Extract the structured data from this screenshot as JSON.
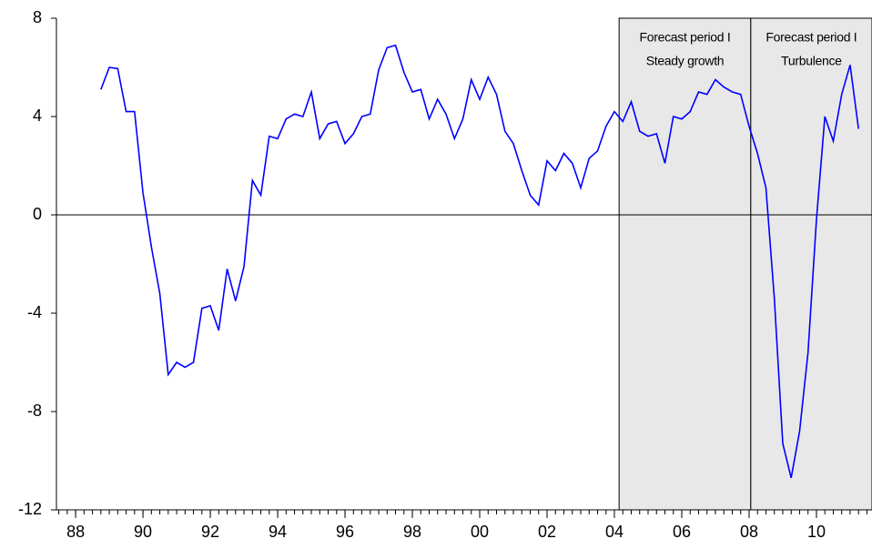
{
  "chart_data": {
    "type": "line",
    "color": "#0000ff",
    "x": [
      1988.75,
      1989,
      1989.25,
      1989.5,
      1989.75,
      1990,
      1990.25,
      1990.5,
      1990.75,
      1991,
      1991.25,
      1991.5,
      1991.75,
      1992,
      1992.25,
      1992.5,
      1992.75,
      1993,
      1993.25,
      1993.5,
      1993.75,
      1994,
      1994.25,
      1994.5,
      1994.75,
      1995,
      1995.25,
      1995.5,
      1995.75,
      1996,
      1996.25,
      1996.5,
      1996.75,
      1997,
      1997.25,
      1997.5,
      1997.75,
      1998,
      1998.25,
      1998.5,
      1998.75,
      1999,
      1999.25,
      1999.5,
      1999.75,
      2000,
      2000.25,
      2000.5,
      2000.75,
      2001,
      2001.25,
      2001.5,
      2001.75,
      2002,
      2002.25,
      2002.5,
      2002.75,
      2003,
      2003.25,
      2003.5,
      2003.75,
      2004,
      2004.25,
      2004.5,
      2004.75,
      2005,
      2005.25,
      2005.5,
      2005.75,
      2006,
      2006.25,
      2006.5,
      2006.75,
      2007,
      2007.25,
      2007.5,
      2007.75,
      2008,
      2008.25,
      2008.5,
      2008.75,
      2009,
      2009.25,
      2009.5,
      2009.75,
      2010,
      2010.25,
      2010.5,
      2010.75,
      2011,
      2011.25
    ],
    "values": [
      5.1,
      6.0,
      5.95,
      4.2,
      4.2,
      0.9,
      -1.3,
      -3.2,
      -6.5,
      -6.0,
      -6.2,
      -6.0,
      -3.8,
      -3.7,
      -4.7,
      -2.2,
      -3.5,
      -2.1,
      1.4,
      0.8,
      3.2,
      3.1,
      3.9,
      4.1,
      4.0,
      5.0,
      3.1,
      3.7,
      3.8,
      2.9,
      3.3,
      4.0,
      4.1,
      5.9,
      6.8,
      6.9,
      5.8,
      5.0,
      5.1,
      3.9,
      4.7,
      4.1,
      3.1,
      3.9,
      5.5,
      4.7,
      5.6,
      4.9,
      3.4,
      2.9,
      1.8,
      0.8,
      0.4,
      2.2,
      1.8,
      2.5,
      2.1,
      1.1,
      2.3,
      2.6,
      3.6,
      4.2,
      3.8,
      4.6,
      3.4,
      3.2,
      3.3,
      2.1,
      4.0,
      3.9,
      4.2,
      5.0,
      4.9,
      5.5,
      5.2,
      5.0,
      4.9,
      3.6,
      2.5,
      1.1,
      -3.4,
      -9.3,
      -10.7,
      -8.8,
      -5.6,
      -0.2,
      4.0,
      3.0,
      4.9,
      6.1,
      3.5
    ],
    "xlim": [
      1987.43,
      2011.65
    ],
    "xticks": [
      {
        "value": 1988,
        "label": "88"
      },
      {
        "value": 1990,
        "label": "90"
      },
      {
        "value": 1992,
        "label": "92"
      },
      {
        "value": 1994,
        "label": "94"
      },
      {
        "value": 1996,
        "label": "96"
      },
      {
        "value": 1998,
        "label": "98"
      },
      {
        "value": 2000,
        "label": "00"
      },
      {
        "value": 2002,
        "label": "02"
      },
      {
        "value": 2004,
        "label": "04"
      },
      {
        "value": 2006,
        "label": "06"
      },
      {
        "value": 2008,
        "label": "08"
      },
      {
        "value": 2010,
        "label": "10"
      }
    ],
    "xminor": 0.25,
    "ylim": [
      -12,
      8
    ],
    "yticks": [
      -12,
      -8,
      -4,
      0,
      4,
      8
    ],
    "zero_line": true,
    "regions": [
      {
        "x0": 2004.14,
        "x1": 2008.05,
        "fill": "#e8e8e8",
        "labels": [
          "Forecast period I",
          "Steady growth"
        ]
      },
      {
        "x0": 2008.05,
        "x1": 2011.65,
        "fill": "#e8e8e8",
        "labels": [
          "Forecast period I",
          "Turbulence"
        ]
      }
    ]
  }
}
